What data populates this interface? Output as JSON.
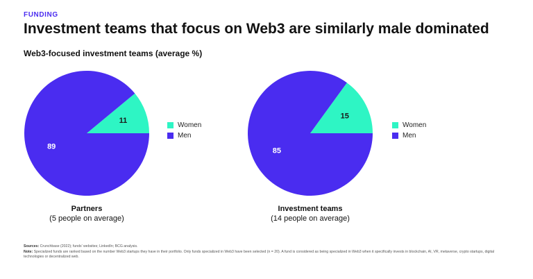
{
  "header": {
    "kicker": "FUNDING",
    "title": "Investment teams that focus on Web3 are similarly male dominated",
    "subtitle": "Web3-focused investment teams (average %)"
  },
  "colors": {
    "women": "#2ef5c4",
    "men": "#4a2cf0",
    "kicker": "#4a2cf0"
  },
  "chart_data": [
    {
      "type": "pie",
      "categories": [
        "Women",
        "Men"
      ],
      "values": [
        11,
        89
      ],
      "caption_title": "Partners",
      "caption_sub": "(5 people on average)",
      "legend": [
        {
          "label": "Women",
          "color": "#2ef5c4"
        },
        {
          "label": "Men",
          "color": "#4a2cf0"
        }
      ]
    },
    {
      "type": "pie",
      "categories": [
        "Women",
        "Men"
      ],
      "values": [
        15,
        85
      ],
      "caption_title": "Investment teams",
      "caption_sub": "(14 people on average)",
      "legend": [
        {
          "label": "Women",
          "color": "#2ef5c4"
        },
        {
          "label": "Men",
          "color": "#4a2cf0"
        }
      ]
    }
  ],
  "footer": {
    "sources_label": "Sources:",
    "sources_text": " Crunchbase (2022); funds' websites; LinkedIn; BCG analysis.",
    "note_label": "Note:",
    "note_text": " Specialized funds are ranked based on the number Web3 startups they have in their portfolio. Only funds specialized in Web3 have been selected (n = 20). A fund is considered as being specialized in Web3 when it specifically invests in blockchain, AI, VR, metaverse, crypto startups, digital technologies or decentralized web."
  }
}
